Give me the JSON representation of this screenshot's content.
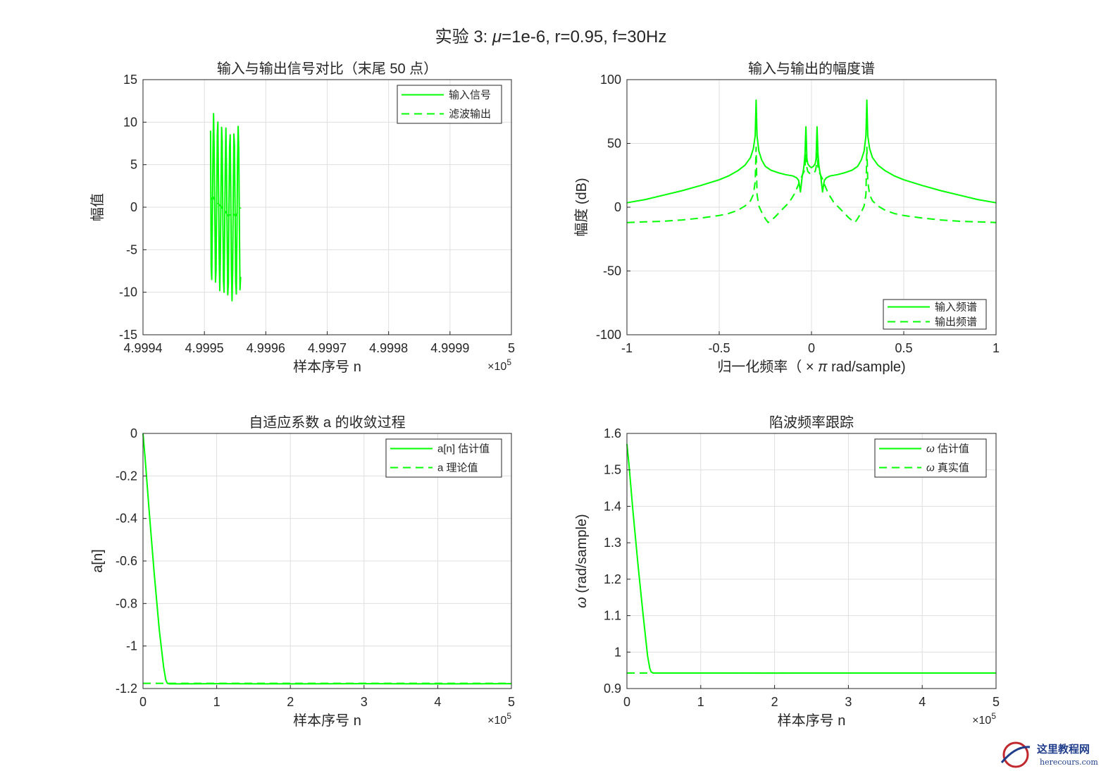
{
  "figure": {
    "suptitle_parts": {
      "prefix": "实验  3:  ",
      "mu_symbol": "μ",
      "suffix": "=1e-6,  r=0.95,  f=30Hz"
    }
  },
  "watermark": {
    "title": "这里教程网",
    "url": "herecours.com"
  },
  "colors": {
    "series": "#00ff00",
    "axes": "#262626",
    "grid": "#dfdfdf",
    "background": "#ffffff"
  },
  "chart_data": [
    {
      "id": "time",
      "type": "line",
      "title": "输入与输出信号对比（末尾 50 点）",
      "xlabel": "样本序号 n",
      "ylabel": "幅值",
      "xlim": [
        4.9994,
        5
      ],
      "ylim": [
        -15,
        15
      ],
      "x_exponent_label": {
        "base": "×10",
        "exp": "5"
      },
      "xticks": [
        4.9994,
        4.9995,
        4.9996,
        4.9997,
        4.9998,
        4.9999,
        5
      ],
      "xtick_labels": [
        "4.9994",
        "4.9995",
        "4.9996",
        "4.9997",
        "4.9998",
        "4.9999",
        "5"
      ],
      "yticks": [
        -15,
        -10,
        -5,
        0,
        5,
        10,
        15
      ],
      "ytick_labels": [
        "-15",
        "-10",
        "-5",
        "0",
        "5",
        "10",
        "15"
      ],
      "grid": true,
      "legend": "top-right",
      "series": [
        {
          "name": "输入信号",
          "style": "solid",
          "x_start": 4.99951,
          "x_step": 1e-06,
          "values": [
            9.0,
            -7.0,
            -8.5,
            -1.5,
            7.0,
            11.0,
            6.5,
            -1.0,
            -8.8,
            -7.5,
            1.0,
            8.5,
            10.0,
            2.5,
            -5.5,
            -9.8,
            -6.0,
            2.0,
            9.4,
            7.8,
            -0.5,
            -8.5,
            -10.0,
            -3.0,
            5.0,
            9.3,
            5.0,
            -3.0,
            -10.3,
            -9.0,
            0.0,
            7.0,
            8.5,
            2.0,
            -7.0,
            -11.0,
            -7.5,
            1.0,
            8.6,
            7.2,
            -1.0,
            -8.8,
            -10.2,
            -3.0,
            5.5,
            9.5,
            6.5,
            -2.5,
            -9.7,
            -8.2
          ]
        },
        {
          "name": "滤波输出",
          "style": "dashed",
          "x_start": 4.99951,
          "x_step": 1e-06,
          "values": [
            1.0,
            0.9,
            1.0,
            1.1,
            1.2,
            1.1,
            0.95,
            0.85,
            0.75,
            0.75,
            0.8,
            0.7,
            0.5,
            0.4,
            0.3,
            0.2,
            0.2,
            0.15,
            0.0,
            -0.1,
            -0.25,
            -0.4,
            -0.5,
            -0.5,
            -0.45,
            -0.55,
            -0.7,
            -0.85,
            -0.95,
            -1.0,
            -0.95,
            -0.9,
            -0.95,
            -1.05,
            -1.15,
            -1.2,
            -1.1,
            -0.95,
            -0.85,
            -0.9,
            -1.0,
            -1.0,
            -0.9,
            -0.75,
            -0.6,
            -0.5,
            -0.5,
            -0.45,
            -0.3,
            -0.05
          ]
        }
      ]
    },
    {
      "id": "spectrum",
      "type": "line",
      "title": "输入与输出的幅度谱",
      "xlabel_parts": {
        "prefix": "归一化频率（",
        "times": "×",
        "pi": "π",
        "suffix": "rad/sample)"
      },
      "ylabel": "幅度 (dB)",
      "xlim": [
        -1,
        1
      ],
      "ylim": [
        -100,
        100
      ],
      "xticks": [
        -1,
        -0.5,
        0,
        0.5,
        1
      ],
      "xtick_labels": [
        "-1",
        "-0.5",
        "0",
        "0.5",
        "1"
      ],
      "yticks": [
        -100,
        -50,
        0,
        50,
        100
      ],
      "ytick_labels": [
        "-100",
        "-50",
        "0",
        "50",
        "100"
      ],
      "grid": true,
      "legend": "bottom-right",
      "series": [
        {
          "name": "输入频谱",
          "style": "solid",
          "points": [
            [
              -1,
              3.5
            ],
            [
              -0.9,
              6
            ],
            [
              -0.8,
              9.5
            ],
            [
              -0.7,
              13
            ],
            [
              -0.6,
              17
            ],
            [
              -0.5,
              21.5
            ],
            [
              -0.45,
              24.5
            ],
            [
              -0.4,
              28.5
            ],
            [
              -0.36,
              33
            ],
            [
              -0.33,
              39
            ],
            [
              -0.315,
              46
            ],
            [
              -0.305,
              56
            ],
            [
              -0.3,
              84
            ],
            [
              -0.295,
              56
            ],
            [
              -0.285,
              44
            ],
            [
              -0.27,
              37
            ],
            [
              -0.25,
              32
            ],
            [
              -0.22,
              29
            ],
            [
              -0.18,
              27
            ],
            [
              -0.14,
              25.5
            ],
            [
              -0.1,
              24.5
            ],
            [
              -0.08,
              23
            ],
            [
              -0.07,
              21
            ],
            [
              -0.065,
              17
            ],
            [
              -0.06,
              12
            ],
            [
              -0.055,
              18
            ],
            [
              -0.05,
              24.5
            ],
            [
              -0.045,
              28
            ],
            [
              -0.04,
              33
            ],
            [
              -0.035,
              42
            ],
            [
              -0.03,
              63
            ],
            [
              -0.025,
              38
            ],
            [
              -0.02,
              34
            ],
            [
              -0.01,
              32
            ],
            [
              0,
              31
            ],
            [
              0.01,
              32
            ],
            [
              0.02,
              34
            ],
            [
              0.025,
              38
            ],
            [
              0.03,
              63
            ],
            [
              0.035,
              42
            ],
            [
              0.04,
              33
            ],
            [
              0.045,
              28
            ],
            [
              0.05,
              24.5
            ],
            [
              0.055,
              18
            ],
            [
              0.06,
              12
            ],
            [
              0.065,
              17
            ],
            [
              0.07,
              21
            ],
            [
              0.08,
              23
            ],
            [
              0.1,
              24.5
            ],
            [
              0.14,
              25.5
            ],
            [
              0.18,
              27
            ],
            [
              0.22,
              29
            ],
            [
              0.25,
              32
            ],
            [
              0.27,
              37
            ],
            [
              0.285,
              44
            ],
            [
              0.295,
              56
            ],
            [
              0.3,
              84
            ],
            [
              0.305,
              56
            ],
            [
              0.315,
              46
            ],
            [
              0.33,
              39
            ],
            [
              0.36,
              33
            ],
            [
              0.4,
              28.5
            ],
            [
              0.45,
              24.5
            ],
            [
              0.5,
              21.5
            ],
            [
              0.6,
              17
            ],
            [
              0.7,
              13
            ],
            [
              0.8,
              9.5
            ],
            [
              0.9,
              6
            ],
            [
              1,
              3.5
            ]
          ]
        },
        {
          "name": "输出频谱",
          "style": "dashed",
          "points": [
            [
              -1,
              -12
            ],
            [
              -0.9,
              -11.5
            ],
            [
              -0.8,
              -11
            ],
            [
              -0.7,
              -10
            ],
            [
              -0.6,
              -8.5
            ],
            [
              -0.5,
              -6.5
            ],
            [
              -0.45,
              -5
            ],
            [
              -0.4,
              -2.5
            ],
            [
              -0.36,
              1
            ],
            [
              -0.33,
              5
            ],
            [
              -0.315,
              10
            ],
            [
              -0.305,
              20
            ],
            [
              -0.3,
              47
            ],
            [
              -0.295,
              10
            ],
            [
              -0.285,
              1
            ],
            [
              -0.27,
              -4
            ],
            [
              -0.25,
              -9
            ],
            [
              -0.235,
              -12
            ],
            [
              -0.22,
              -10.5
            ],
            [
              -0.2,
              -8
            ],
            [
              -0.16,
              -2
            ],
            [
              -0.12,
              4
            ],
            [
              -0.09,
              11
            ],
            [
              -0.07,
              18
            ],
            [
              -0.06,
              22
            ],
            [
              -0.05,
              25
            ],
            [
              -0.04,
              28
            ],
            [
              -0.035,
              32
            ],
            [
              -0.03,
              42
            ],
            [
              -0.025,
              31
            ],
            [
              -0.02,
              28
            ],
            [
              -0.01,
              26.5
            ],
            [
              0,
              26
            ],
            [
              0.01,
              26.5
            ],
            [
              0.02,
              28
            ],
            [
              0.025,
              31
            ],
            [
              0.03,
              42
            ],
            [
              0.035,
              32
            ],
            [
              0.04,
              28
            ],
            [
              0.05,
              25
            ],
            [
              0.06,
              22
            ],
            [
              0.07,
              18
            ],
            [
              0.09,
              11
            ],
            [
              0.12,
              4
            ],
            [
              0.16,
              -2
            ],
            [
              0.2,
              -8
            ],
            [
              0.22,
              -10.5
            ],
            [
              0.235,
              -12
            ],
            [
              0.25,
              -9
            ],
            [
              0.27,
              -4
            ],
            [
              0.285,
              1
            ],
            [
              0.295,
              10
            ],
            [
              0.3,
              47
            ],
            [
              0.305,
              20
            ],
            [
              0.315,
              10
            ],
            [
              0.33,
              5
            ],
            [
              0.36,
              1
            ],
            [
              0.4,
              -2.5
            ],
            [
              0.45,
              -5
            ],
            [
              0.5,
              -6.5
            ],
            [
              0.6,
              -8.5
            ],
            [
              0.7,
              -10
            ],
            [
              0.8,
              -11
            ],
            [
              0.9,
              -11.5
            ],
            [
              1,
              -12
            ]
          ]
        }
      ]
    },
    {
      "id": "coef",
      "type": "line",
      "title": "自适应系数 a 的收敛过程",
      "xlabel": "样本序号 n",
      "ylabel": "a[n]",
      "xlim": [
        0,
        5
      ],
      "ylim": [
        -1.2,
        0
      ],
      "x_exponent_label": {
        "base": "×10",
        "exp": "5"
      },
      "xticks": [
        0,
        1,
        2,
        3,
        4,
        5
      ],
      "xtick_labels": [
        "0",
        "1",
        "2",
        "3",
        "4",
        "5"
      ],
      "yticks": [
        -1.2,
        -1,
        -0.8,
        -0.6,
        -0.4,
        -0.2,
        0
      ],
      "ytick_labels": [
        "-1.2",
        "-1",
        "-0.8",
        "-0.6",
        "-0.4",
        "-0.2",
        "0"
      ],
      "grid": true,
      "legend": "top-right",
      "series": [
        {
          "name": "a[n] 估计值",
          "style": "solid",
          "points": [
            [
              0,
              0
            ],
            [
              0.03,
              -0.12
            ],
            [
              0.08,
              -0.35
            ],
            [
              0.15,
              -0.65
            ],
            [
              0.22,
              -0.92
            ],
            [
              0.28,
              -1.1
            ],
            [
              0.31,
              -1.16
            ],
            [
              0.33,
              -1.175
            ],
            [
              0.36,
              -1.178
            ],
            [
              1,
              -1.177
            ],
            [
              2,
              -1.178
            ],
            [
              3,
              -1.177
            ],
            [
              4,
              -1.178
            ],
            [
              5,
              -1.177
            ]
          ]
        },
        {
          "name": "a 理论值",
          "style": "dashed",
          "points": [
            [
              0,
              -1.1756
            ],
            [
              5,
              -1.1756
            ]
          ]
        }
      ]
    },
    {
      "id": "omega",
      "type": "line",
      "title": "陷波频率跟踪",
      "xlabel": "样本序号 n",
      "ylabel_parts": {
        "omega": "ω",
        "rest": " (rad/sample)"
      },
      "xlim": [
        0,
        5
      ],
      "ylim": [
        0.9,
        1.6
      ],
      "x_exponent_label": {
        "base": "×10",
        "exp": "5"
      },
      "xticks": [
        0,
        1,
        2,
        3,
        4,
        5
      ],
      "xtick_labels": [
        "0",
        "1",
        "2",
        "3",
        "4",
        "5"
      ],
      "yticks": [
        0.9,
        1,
        1.1,
        1.2,
        1.3,
        1.4,
        1.5,
        1.6
      ],
      "ytick_labels": [
        "0.9",
        "1",
        "1.1",
        "1.2",
        "1.3",
        "1.4",
        "1.5",
        "1.6"
      ],
      "grid": true,
      "legend": "top-right",
      "series": [
        {
          "name": "估计值",
          "legend_symbol": "ω",
          "style": "solid",
          "points": [
            [
              0,
              1.571
            ],
            [
              0.03,
              1.51
            ],
            [
              0.08,
              1.39
            ],
            [
              0.15,
              1.24
            ],
            [
              0.22,
              1.1
            ],
            [
              0.28,
              0.99
            ],
            [
              0.31,
              0.955
            ],
            [
              0.33,
              0.945
            ],
            [
              0.36,
              0.9425
            ],
            [
              1,
              0.9426
            ],
            [
              2,
              0.9424
            ],
            [
              3,
              0.9425
            ],
            [
              4,
              0.9426
            ],
            [
              5,
              0.9425
            ]
          ]
        },
        {
          "name": "真实值",
          "legend_symbol": "ω",
          "style": "dashed",
          "points": [
            [
              0,
              0.9425
            ],
            [
              5,
              0.9425
            ]
          ]
        }
      ]
    }
  ]
}
